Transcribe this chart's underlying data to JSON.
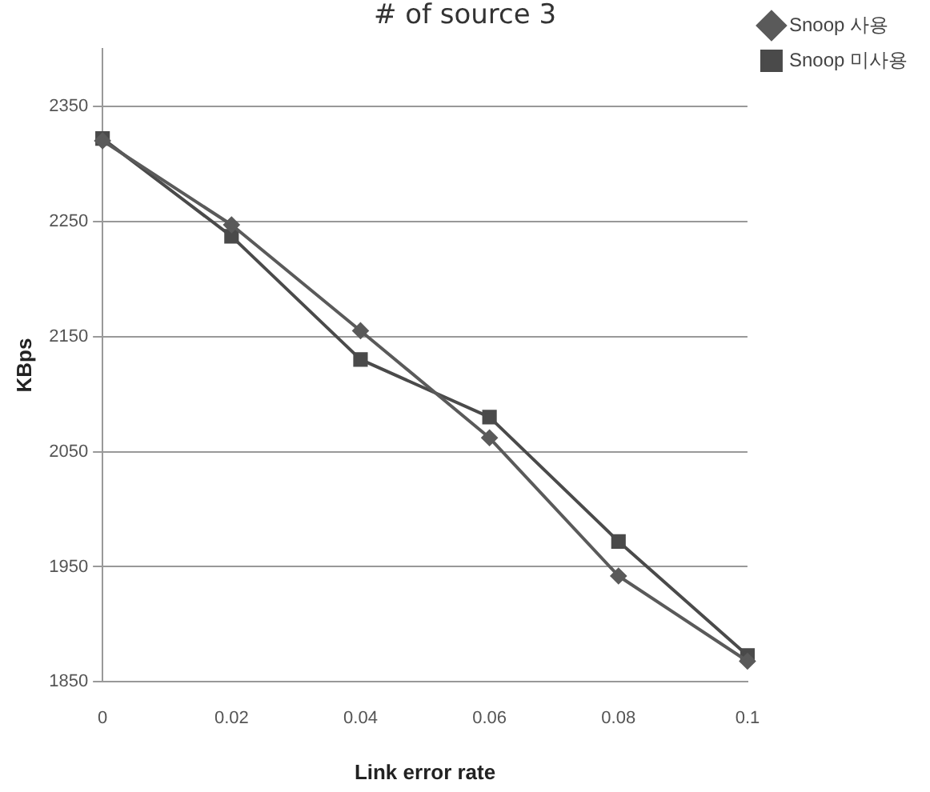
{
  "chart_data": {
    "type": "line",
    "title": "# of source 3",
    "xlabel": "Link error rate",
    "ylabel": "KBps",
    "categories": [
      "0",
      "0.02",
      "0.04",
      "0.06",
      "0.08",
      "0.1"
    ],
    "series": [
      {
        "name": "Snoop 사용",
        "color": "#5a5a5a",
        "marker": "diamond",
        "values": [
          2320,
          2247,
          2155,
          2062,
          1942,
          1868
        ]
      },
      {
        "name": "Snoop 미사용",
        "color": "#4a4a4a",
        "marker": "square",
        "values": [
          2322,
          2237,
          2130,
          2080,
          1972,
          1873
        ]
      }
    ],
    "ylim": [
      1850,
      2400
    ],
    "yticks": [
      1850,
      1950,
      2050,
      2150,
      2250,
      2350
    ],
    "grid": "y",
    "legend": "top right",
    "line_style": "solid"
  }
}
